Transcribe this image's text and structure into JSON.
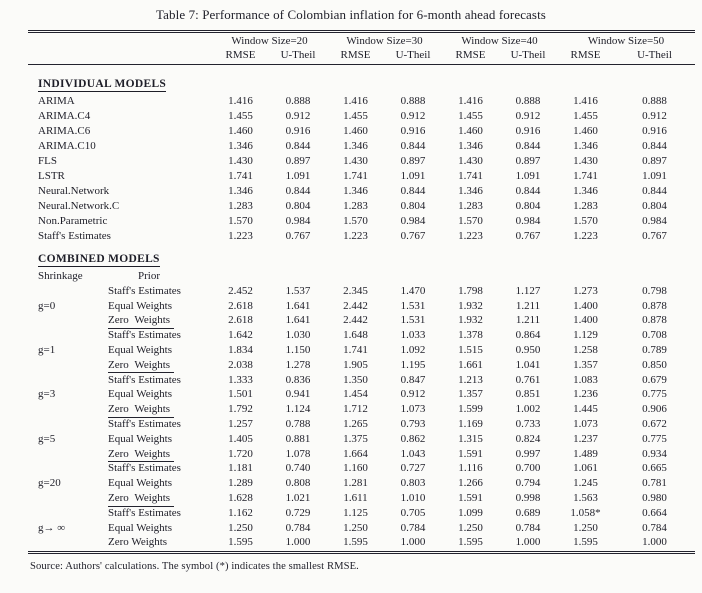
{
  "page": {
    "title": "Table 7: Performance of Colombian inflation for 6-month ahead forecasts",
    "footer": "Source: Authors' calculations. The symbol (*) indicates the smallest RMSE."
  },
  "table": {
    "window_groups": [
      "Window Size=20",
      "Window Size=30",
      "Window Size=40",
      "Window Size=50"
    ],
    "metric_headers": [
      "RMSE",
      "U-Theil",
      "RMSE",
      "U-Theil",
      "RMSE",
      "U-Theil",
      "RMSE",
      "U-Theil"
    ],
    "individual": {
      "heading": "INDIVIDUAL MODELS",
      "rows": [
        {
          "model": "ARIMA",
          "values": [
            "1.416",
            "0.888",
            "1.416",
            "0.888",
            "1.416",
            "0.888",
            "1.416",
            "0.888"
          ]
        },
        {
          "model": "ARIMA.C4",
          "values": [
            "1.455",
            "0.912",
            "1.455",
            "0.912",
            "1.455",
            "0.912",
            "1.455",
            "0.912"
          ]
        },
        {
          "model": "ARIMA.C6",
          "values": [
            "1.460",
            "0.916",
            "1.460",
            "0.916",
            "1.460",
            "0.916",
            "1.460",
            "0.916"
          ]
        },
        {
          "model": "ARIMA.C10",
          "values": [
            "1.346",
            "0.844",
            "1.346",
            "0.844",
            "1.346",
            "0.844",
            "1.346",
            "0.844"
          ]
        },
        {
          "model": "FLS",
          "values": [
            "1.430",
            "0.897",
            "1.430",
            "0.897",
            "1.430",
            "0.897",
            "1.430",
            "0.897"
          ]
        },
        {
          "model": "LSTR",
          "values": [
            "1.741",
            "1.091",
            "1.741",
            "1.091",
            "1.741",
            "1.091",
            "1.741",
            "1.091"
          ]
        },
        {
          "model": "Neural.Network",
          "values": [
            "1.346",
            "0.844",
            "1.346",
            "0.844",
            "1.346",
            "0.844",
            "1.346",
            "0.844"
          ]
        },
        {
          "model": "Neural.Network.C",
          "values": [
            "1.283",
            "0.804",
            "1.283",
            "0.804",
            "1.283",
            "0.804",
            "1.283",
            "0.804"
          ]
        },
        {
          "model": "Non.Parametric",
          "values": [
            "1.570",
            "0.984",
            "1.570",
            "0.984",
            "1.570",
            "0.984",
            "1.570",
            "0.984"
          ]
        },
        {
          "model": "Staff's Estimates",
          "values": [
            "1.223",
            "0.767",
            "1.223",
            "0.767",
            "1.223",
            "0.767",
            "1.223",
            "0.767"
          ]
        }
      ]
    },
    "combined": {
      "heading": "COMBINED MODELS",
      "shrinkage_header": "Shrinkage",
      "prior_header": "Prior",
      "groups": [
        {
          "shrinkage": "g=0",
          "rows": [
            {
              "prior": "Staff's Estimates",
              "underlined": false,
              "values": [
                "2.452",
                "1.537",
                "2.345",
                "1.470",
                "1.798",
                "1.127",
                "1.273",
                "0.798"
              ]
            },
            {
              "prior": "Equal Weights",
              "underlined": false,
              "values": [
                "2.618",
                "1.641",
                "2.442",
                "1.531",
                "1.932",
                "1.211",
                "1.400",
                "0.878"
              ]
            },
            {
              "prior": "Zero Weights",
              "underlined": true,
              "values": [
                "2.618",
                "1.641",
                "2.442",
                "1.531",
                "1.932",
                "1.211",
                "1.400",
                "0.878"
              ]
            }
          ]
        },
        {
          "shrinkage": "g=1",
          "rows": [
            {
              "prior": "Staff's Estimates",
              "underlined": false,
              "values": [
                "1.642",
                "1.030",
                "1.648",
                "1.033",
                "1.378",
                "0.864",
                "1.129",
                "0.708"
              ]
            },
            {
              "prior": "Equal Weights",
              "underlined": false,
              "values": [
                "1.834",
                "1.150",
                "1.741",
                "1.092",
                "1.515",
                "0.950",
                "1.258",
                "0.789"
              ]
            },
            {
              "prior": "Zero Weights",
              "underlined": true,
              "values": [
                "2.038",
                "1.278",
                "1.905",
                "1.195",
                "1.661",
                "1.041",
                "1.357",
                "0.850"
              ]
            }
          ]
        },
        {
          "shrinkage": "g=3",
          "rows": [
            {
              "prior": "Staff's Estimates",
              "underlined": false,
              "values": [
                "1.333",
                "0.836",
                "1.350",
                "0.847",
                "1.213",
                "0.761",
                "1.083",
                "0.679"
              ]
            },
            {
              "prior": "Equal Weights",
              "underlined": false,
              "values": [
                "1.501",
                "0.941",
                "1.454",
                "0.912",
                "1.357",
                "0.851",
                "1.236",
                "0.775"
              ]
            },
            {
              "prior": "Zero Weights",
              "underlined": true,
              "values": [
                "1.792",
                "1.124",
                "1.712",
                "1.073",
                "1.599",
                "1.002",
                "1.445",
                "0.906"
              ]
            }
          ]
        },
        {
          "shrinkage": "g=5",
          "rows": [
            {
              "prior": "Staff's Estimates",
              "underlined": false,
              "values": [
                "1.257",
                "0.788",
                "1.265",
                "0.793",
                "1.169",
                "0.733",
                "1.073",
                "0.672"
              ]
            },
            {
              "prior": "Equal Weights",
              "underlined": false,
              "values": [
                "1.405",
                "0.881",
                "1.375",
                "0.862",
                "1.315",
                "0.824",
                "1.237",
                "0.775"
              ]
            },
            {
              "prior": "Zero Weights",
              "underlined": true,
              "values": [
                "1.720",
                "1.078",
                "1.664",
                "1.043",
                "1.591",
                "0.997",
                "1.489",
                "0.934"
              ]
            }
          ]
        },
        {
          "shrinkage": "g=20",
          "rows": [
            {
              "prior": "Staff's Estimates",
              "underlined": false,
              "values": [
                "1.181",
                "0.740",
                "1.160",
                "0.727",
                "1.116",
                "0.700",
                "1.061",
                "0.665"
              ]
            },
            {
              "prior": "Equal Weights",
              "underlined": false,
              "values": [
                "1.289",
                "0.808",
                "1.281",
                "0.803",
                "1.266",
                "0.794",
                "1.245",
                "0.781"
              ]
            },
            {
              "prior": "Zero Weights",
              "underlined": true,
              "values": [
                "1.628",
                "1.021",
                "1.611",
                "1.010",
                "1.591",
                "0.998",
                "1.563",
                "0.980"
              ]
            }
          ]
        },
        {
          "shrinkage": "g→ ∞",
          "rows": [
            {
              "prior": "Staff's Estimates",
              "underlined": false,
              "values": [
                "1.162",
                "0.729",
                "1.125",
                "0.705",
                "1.099",
                "0.689",
                "1.058*",
                "0.664"
              ]
            },
            {
              "prior": "Equal Weights",
              "underlined": false,
              "values": [
                "1.250",
                "0.784",
                "1.250",
                "0.784",
                "1.250",
                "0.784",
                "1.250",
                "0.784"
              ]
            },
            {
              "prior": "Zero Weights",
              "underlined": false,
              "values": [
                "1.595",
                "1.000",
                "1.595",
                "1.000",
                "1.595",
                "1.000",
                "1.595",
                "1.000"
              ]
            }
          ]
        }
      ]
    }
  }
}
